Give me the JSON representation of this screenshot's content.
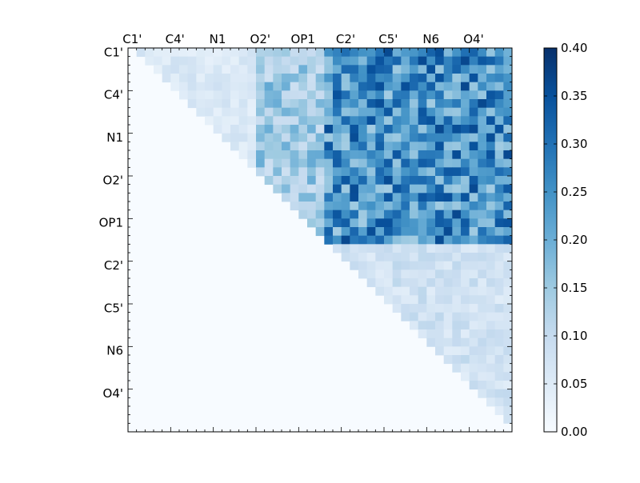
{
  "chart_data": {
    "type": "heatmap",
    "n": 45,
    "atom_labels": [
      "C1'",
      "C4'",
      "N1",
      "O2'",
      "OP1",
      "C2'",
      "C5'",
      "N6",
      "O4'"
    ],
    "label_stride": 5,
    "x_tick_labels": [
      "C1'",
      "C4'",
      "N1",
      "O2'",
      "OP1",
      "C2'",
      "C5'",
      "N6",
      "O4'"
    ],
    "y_tick_labels": [
      "C1'",
      "C4'",
      "N1",
      "O2'",
      "OP1",
      "C2'",
      "C5'",
      "N6",
      "O4'"
    ],
    "colorbar": {
      "min": 0.0,
      "max": 0.4,
      "ticks": [
        "0.00",
        "0.05",
        "0.10",
        "0.15",
        "0.20",
        "0.25",
        "0.30",
        "0.35",
        "0.40"
      ],
      "colormap": "Blues"
    },
    "blocks": [
      {
        "rows": [
          0,
          22
        ],
        "cols": [
          23,
          44
        ],
        "value": 0.26
      },
      {
        "rows": [
          0,
          22
        ],
        "cols": [
          15,
          22
        ],
        "value": 0.15
      },
      {
        "rows": [
          0,
          22
        ],
        "cols": [
          0,
          14
        ],
        "value": 0.06
      },
      {
        "rows": [
          23,
          44
        ],
        "cols": [
          23,
          44
        ],
        "value": 0.08
      }
    ],
    "structure": "upper-triangular",
    "title": "",
    "xlabel": "",
    "ylabel": ""
  }
}
